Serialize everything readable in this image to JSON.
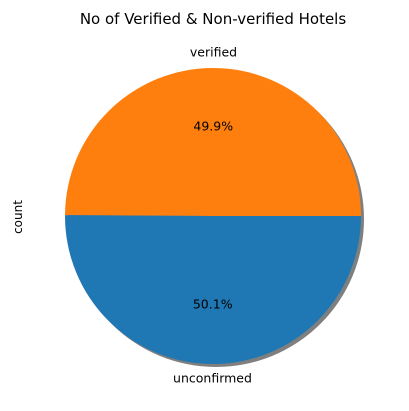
{
  "chart_data": {
    "type": "pie",
    "title": "No of Verified & Non-verified Hotels",
    "ylabel": "count",
    "startangle_deg": 0,
    "counterclock": true,
    "shadow": true,
    "labels": [
      "verified",
      "unconfirmed"
    ],
    "values": [
      49.9,
      50.1
    ],
    "percent_labels": [
      "49.9%",
      "50.1%"
    ],
    "colors": [
      "#ff7f0e",
      "#1f77b4"
    ],
    "shadow_color": "#7f7f7f"
  }
}
